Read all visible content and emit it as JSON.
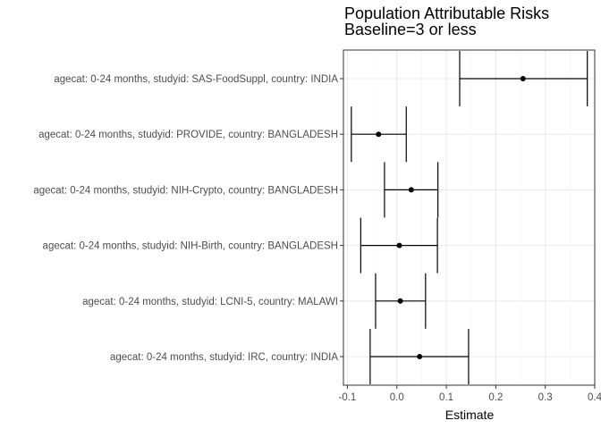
{
  "chart_data": {
    "type": "forest",
    "title": "Population Attributable Risks",
    "subtitle": "Baseline=3 or less",
    "xlabel": "Estimate",
    "ylabel": "",
    "xlim": [
      -0.108,
      0.4
    ],
    "x_ticks": [
      -0.1,
      0.0,
      0.1,
      0.2,
      0.3,
      0.4
    ],
    "x_tick_labels": [
      "-0.1",
      "0.0",
      "0.1",
      "0.2",
      "0.3",
      "0.4"
    ],
    "grid": true,
    "legend": "none",
    "categories": [
      "agecat: 0-24 months, studyid: SAS-FoodSuppl, country: INDIA",
      "agecat: 0-24 months, studyid: PROVIDE, country: BANGLADESH",
      "agecat: 0-24 months, studyid: NIH-Crypto, country: BANGLADESH",
      "agecat: 0-24 months, studyid: NIH-Birth, country: BANGLADESH",
      "agecat: 0-24 months, studyid: LCNI-5, country: MALAWI",
      "agecat: 0-24 months, studyid: IRC, country: INDIA"
    ],
    "estimates": [
      0.255,
      -0.037,
      0.029,
      0.005,
      0.007,
      0.046
    ],
    "lower": [
      0.127,
      -0.092,
      -0.025,
      -0.073,
      -0.043,
      -0.054
    ],
    "upper": [
      0.385,
      0.019,
      0.083,
      0.082,
      0.058,
      0.145
    ]
  },
  "colors": {
    "background": "#ffffff",
    "panel_border": "#333333",
    "grid_major": "#ebebeb",
    "grid_minor": "#f5f5f5",
    "point": "#000000",
    "errorbar": "#000000",
    "text_axis": "#4d4d4d",
    "text_title": "#000000"
  }
}
